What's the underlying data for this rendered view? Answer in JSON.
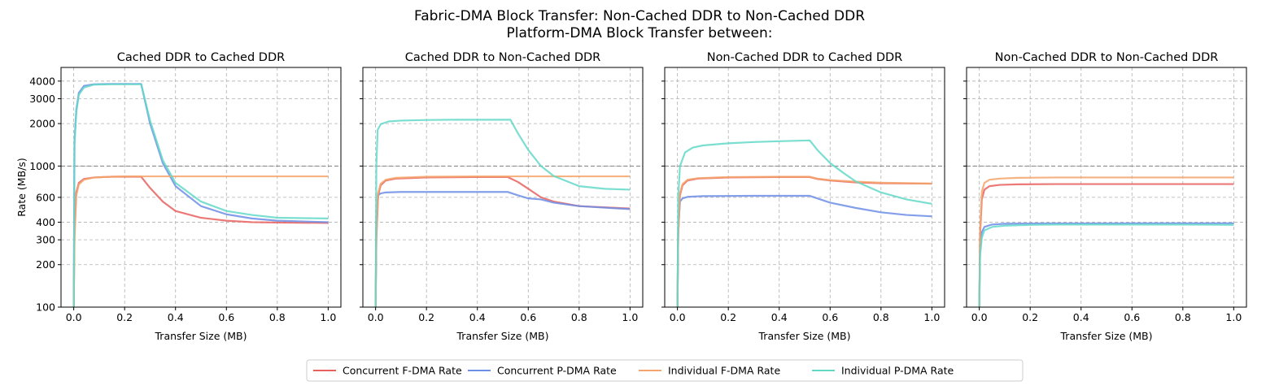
{
  "figure": {
    "title_line1": "Fabric-DMA Block Transfer: Non-Cached DDR to Non-Cached DDR",
    "title_line2": "Platform-DMA Block Transfer between:"
  },
  "chart_data": {
    "type": "line",
    "xlabel": "Transfer Size (MB)",
    "ylabel": "Rate (MB/s)",
    "yscale": "log",
    "ylim": [
      100,
      5000
    ],
    "xlim": [
      -0.05,
      1.05
    ],
    "xticks": [
      "0.0",
      "0.2",
      "0.4",
      "0.6",
      "0.8",
      "1.0"
    ],
    "yticks": [
      100,
      200,
      300,
      400,
      600,
      1000,
      2000,
      3000,
      4000
    ],
    "reference_line": 1000,
    "grid": true,
    "legend_position": "bottom-center",
    "series_styles": [
      {
        "name": "Concurrent F-DMA Rate",
        "color": "#e8615f"
      },
      {
        "name": "Concurrent P-DMA Rate",
        "color": "#6d8ee6"
      },
      {
        "name": "Individual F-DMA Rate",
        "color": "#f5a56b"
      },
      {
        "name": "Individual P-DMA Rate",
        "color": "#63d8c8"
      }
    ],
    "panels": [
      {
        "title": "Cached DDR to Cached DDR",
        "series": [
          {
            "name": "Concurrent F-DMA Rate",
            "x": [
              0,
              0.003,
              0.01,
              0.02,
              0.04,
              0.08,
              0.15,
              0.265,
              0.3,
              0.35,
              0.4,
              0.5,
              0.6,
              0.7,
              0.8,
              1.0
            ],
            "y": [
              100,
              350,
              650,
              760,
              810,
              830,
              840,
              840,
              700,
              560,
              480,
              430,
              410,
              400,
              398,
              395
            ]
          },
          {
            "name": "Concurrent P-DMA Rate",
            "x": [
              0,
              0.003,
              0.01,
              0.02,
              0.04,
              0.08,
              0.15,
              0.265,
              0.3,
              0.35,
              0.4,
              0.5,
              0.6,
              0.7,
              0.8,
              1.0
            ],
            "y": [
              100,
              1500,
              2500,
              3300,
              3700,
              3800,
              3820,
              3820,
              2000,
              1050,
              720,
              520,
              455,
              425,
              410,
              400
            ]
          },
          {
            "name": "Individual F-DMA Rate",
            "x": [
              0,
              0.003,
              0.01,
              0.02,
              0.04,
              0.08,
              0.15,
              0.2,
              0.3,
              0.4,
              0.6,
              0.8,
              1.0
            ],
            "y": [
              100,
              300,
              620,
              740,
              800,
              830,
              840,
              845,
              845,
              845,
              845,
              845,
              845
            ]
          },
          {
            "name": "Individual P-DMA Rate",
            "x": [
              0,
              0.003,
              0.01,
              0.02,
              0.04,
              0.08,
              0.15,
              0.265,
              0.3,
              0.35,
              0.4,
              0.5,
              0.6,
              0.7,
              0.8,
              1.0
            ],
            "y": [
              100,
              1450,
              2400,
              3200,
              3600,
              3780,
              3800,
              3800,
              2100,
              1100,
              760,
              560,
              480,
              450,
              430,
              425
            ]
          }
        ]
      },
      {
        "title": "Cached DDR to Non-Cached DDR",
        "series": [
          {
            "name": "Concurrent F-DMA Rate",
            "x": [
              0,
              0.003,
              0.01,
              0.02,
              0.04,
              0.08,
              0.2,
              0.4,
              0.52,
              0.56,
              0.6,
              0.65,
              0.7,
              0.8,
              1.0
            ],
            "y": [
              100,
              300,
              620,
              730,
              790,
              815,
              830,
              835,
              835,
              770,
              690,
              600,
              560,
              520,
              500
            ]
          },
          {
            "name": "Concurrent P-DMA Rate",
            "x": [
              0,
              0.003,
              0.01,
              0.02,
              0.04,
              0.1,
              0.3,
              0.52,
              0.56,
              0.6,
              0.65,
              0.7,
              0.8,
              1.0
            ],
            "y": [
              100,
              400,
              620,
              640,
              650,
              655,
              655,
              655,
              620,
              590,
              580,
              550,
              520,
              495
            ]
          },
          {
            "name": "Individual F-DMA Rate",
            "x": [
              0,
              0.003,
              0.01,
              0.02,
              0.04,
              0.08,
              0.2,
              0.4,
              0.6,
              0.8,
              1.0
            ],
            "y": [
              100,
              320,
              640,
              750,
              800,
              825,
              840,
              845,
              845,
              845,
              845
            ]
          },
          {
            "name": "Individual P-DMA Rate",
            "x": [
              0,
              0.003,
              0.008,
              0.02,
              0.05,
              0.1,
              0.2,
              0.3,
              0.4,
              0.53,
              0.56,
              0.6,
              0.65,
              0.7,
              0.8,
              0.9,
              1.0
            ],
            "y": [
              100,
              1000,
              1800,
              1980,
              2070,
              2100,
              2120,
              2130,
              2130,
              2130,
              1700,
              1300,
              1000,
              850,
              720,
              690,
              680
            ]
          }
        ]
      },
      {
        "title": "Non-Cached DDR to Cached DDR",
        "series": [
          {
            "name": "Concurrent F-DMA Rate",
            "x": [
              0,
              0.003,
              0.01,
              0.02,
              0.04,
              0.08,
              0.2,
              0.4,
              0.52,
              0.55,
              0.6,
              0.7,
              0.8,
              1.0
            ],
            "y": [
              100,
              320,
              620,
              730,
              790,
              815,
              830,
              835,
              835,
              810,
              790,
              765,
              755,
              750
            ]
          },
          {
            "name": "Concurrent P-DMA Rate",
            "x": [
              0,
              0.003,
              0.01,
              0.02,
              0.04,
              0.1,
              0.3,
              0.52,
              0.55,
              0.6,
              0.7,
              0.8,
              0.9,
              1.0
            ],
            "y": [
              100,
              350,
              560,
              590,
              605,
              612,
              615,
              615,
              590,
              550,
              505,
              470,
              450,
              440
            ]
          },
          {
            "name": "Individual F-DMA Rate",
            "x": [
              0,
              0.003,
              0.01,
              0.02,
              0.04,
              0.08,
              0.2,
              0.4,
              0.52,
              0.55,
              0.6,
              0.7,
              0.8,
              1.0
            ],
            "y": [
              100,
              320,
              640,
              745,
              800,
              820,
              835,
              840,
              840,
              815,
              795,
              775,
              762,
              752
            ]
          },
          {
            "name": "Individual P-DMA Rate",
            "x": [
              0,
              0.003,
              0.01,
              0.03,
              0.06,
              0.1,
              0.2,
              0.3,
              0.4,
              0.52,
              0.55,
              0.6,
              0.65,
              0.7,
              0.8,
              0.9,
              1.0
            ],
            "y": [
              100,
              600,
              1000,
              1250,
              1350,
              1400,
              1450,
              1480,
              1500,
              1520,
              1300,
              1050,
              900,
              780,
              650,
              580,
              540
            ]
          }
        ]
      },
      {
        "title": "Non-Cached DDR to Non-Cached DDR",
        "series": [
          {
            "name": "Concurrent F-DMA Rate",
            "x": [
              0,
              0.003,
              0.01,
              0.02,
              0.04,
              0.08,
              0.15,
              0.3,
              0.5,
              0.7,
              1.0
            ],
            "y": [
              100,
              320,
              580,
              680,
              720,
              735,
              742,
              745,
              745,
              745,
              745
            ]
          },
          {
            "name": "Concurrent P-DMA Rate",
            "x": [
              0,
              0.003,
              0.01,
              0.02,
              0.05,
              0.1,
              0.3,
              0.5,
              0.7,
              0.9,
              1.0
            ],
            "y": [
              100,
              250,
              340,
              370,
              385,
              390,
              392,
              392,
              393,
              393,
              393
            ]
          },
          {
            "name": "Individual F-DMA Rate",
            "x": [
              0,
              0.003,
              0.01,
              0.02,
              0.04,
              0.08,
              0.15,
              0.3,
              0.5,
              0.7,
              1.0
            ],
            "y": [
              100,
              340,
              660,
              760,
              800,
              815,
              825,
              830,
              830,
              830,
              830
            ]
          },
          {
            "name": "Individual P-DMA Rate",
            "x": [
              0,
              0.003,
              0.01,
              0.02,
              0.05,
              0.1,
              0.2,
              0.3,
              0.5,
              0.7,
              0.9,
              1.0
            ],
            "y": [
              100,
              230,
              310,
              350,
              370,
              378,
              383,
              385,
              385,
              385,
              384,
              383
            ]
          }
        ]
      }
    ]
  }
}
